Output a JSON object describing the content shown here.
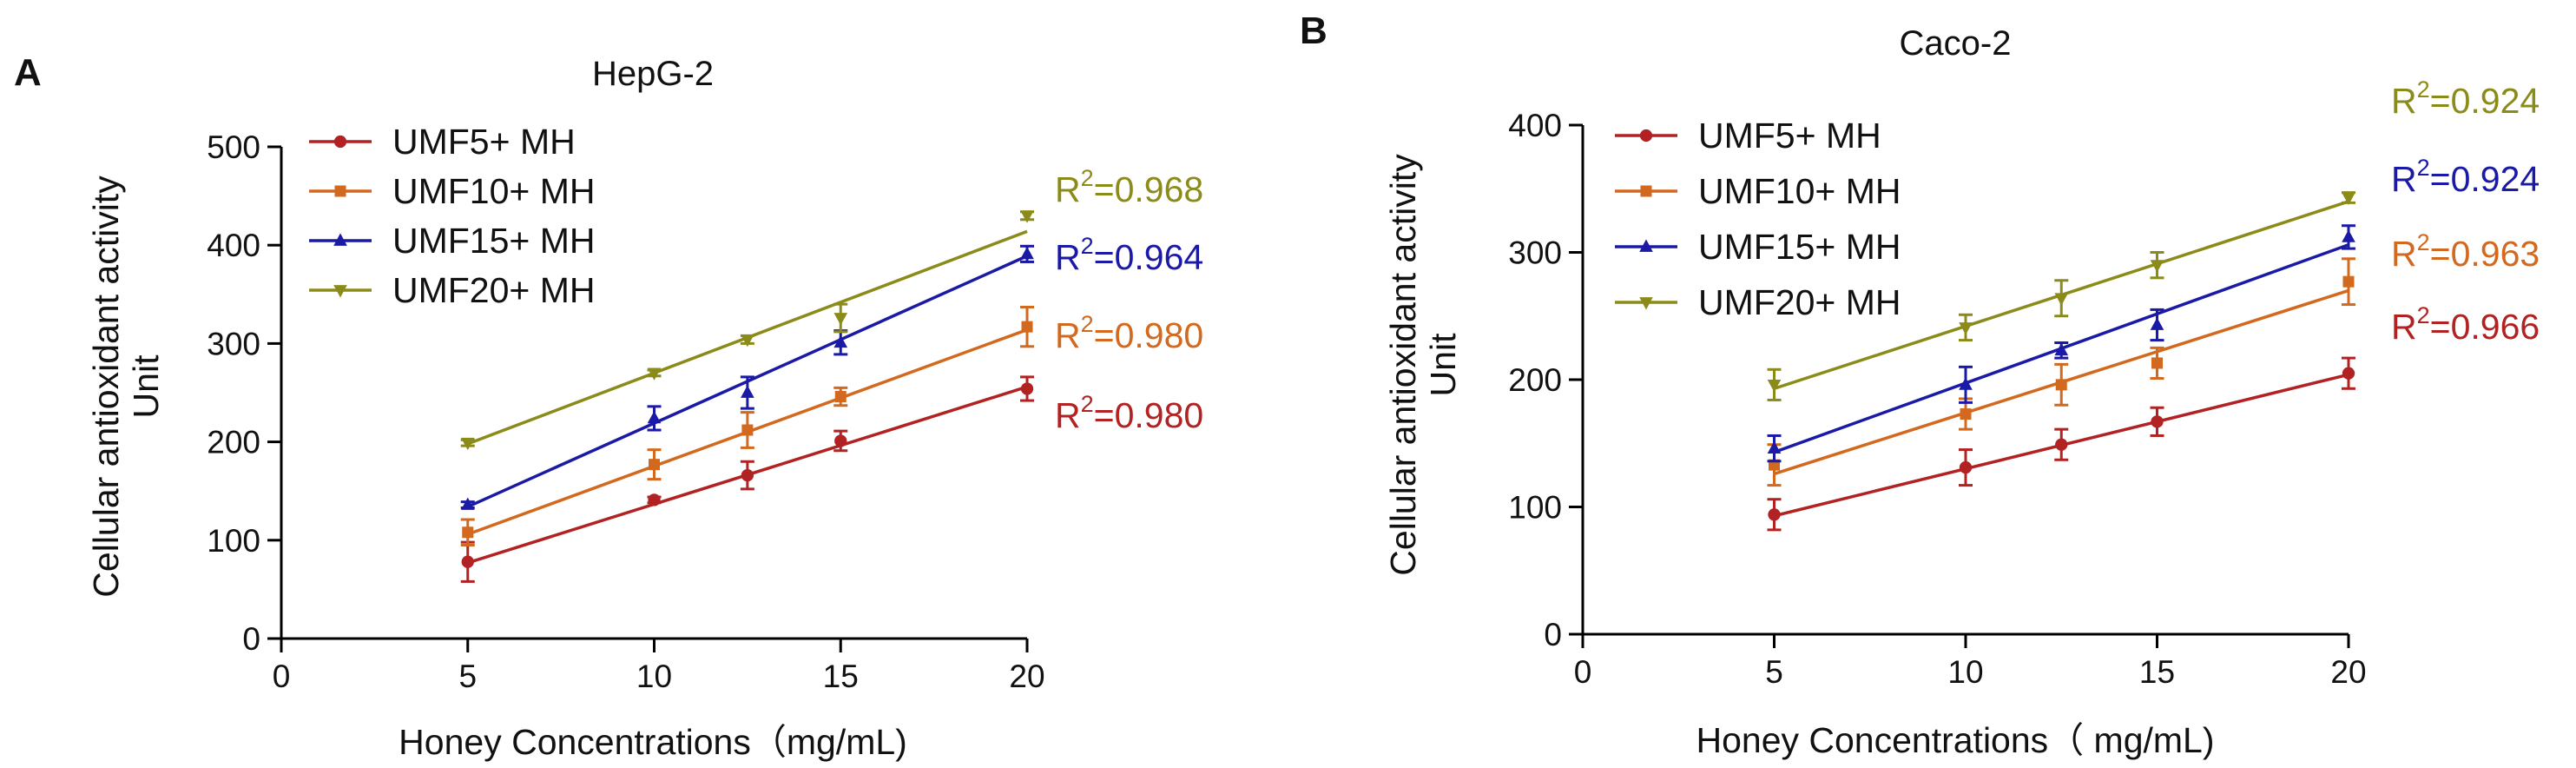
{
  "chart_data": [
    {
      "panel_label": "A",
      "type": "line",
      "title": "HepG-2",
      "xlabel": "Honey Concentrations（mg/mL)",
      "ylabel": [
        "Cellular antioxidant activity",
        "Unit"
      ],
      "xlim": [
        0,
        20
      ],
      "ylim": [
        0,
        500
      ],
      "xticks": [
        0,
        5,
        10,
        15,
        20
      ],
      "yticks": [
        0,
        100,
        200,
        300,
        400,
        500
      ],
      "x": [
        5,
        10,
        12.5,
        15,
        20
      ],
      "series": [
        {
          "name": "UMF5+ MH",
          "color": "#b22222",
          "marker": "circle",
          "values": [
            78,
            141,
            166,
            201,
            254
          ],
          "errors": [
            20,
            3,
            14,
            10,
            12
          ],
          "fit": [
            77,
            136,
            166,
            196,
            256
          ],
          "r2": "=0.980"
        },
        {
          "name": "UMF10+ MH",
          "color": "#d2691e",
          "marker": "square",
          "values": [
            108,
            177,
            212,
            246,
            317
          ],
          "errors": [
            13,
            15,
            18,
            9,
            20
          ],
          "fit": [
            106,
            175,
            210,
            245,
            314
          ],
          "r2": "=0.980"
        },
        {
          "name": "UMF15+ MH",
          "color": "#1a1aa6",
          "marker": "triangle-up",
          "values": [
            136,
            224,
            250,
            301,
            391
          ],
          "errors": [
            3,
            12,
            16,
            12,
            8
          ],
          "fit": [
            134,
            219,
            261,
            304,
            389
          ],
          "r2": "=0.964"
        },
        {
          "name": "UMF20+ MH",
          "color": "#8b8b1a",
          "marker": "triangle-down",
          "values": [
            199,
            270,
            304,
            326,
            430
          ],
          "errors": [
            3,
            3,
            4,
            14,
            4
          ],
          "fit": [
            198,
            270,
            306,
            342,
            414
          ],
          "r2": "=0.968"
        }
      ],
      "r2_prefix": "R",
      "r2_sup": "2"
    },
    {
      "panel_label": "B",
      "type": "line",
      "title": "Caco-2",
      "xlabel": "Honey Concentrations（ mg/mL)",
      "ylabel": [
        "Cellular antioxidant activity",
        "Unit"
      ],
      "xlim": [
        0,
        20
      ],
      "ylim": [
        0,
        400
      ],
      "xticks": [
        0,
        5,
        10,
        15,
        20
      ],
      "yticks": [
        0,
        100,
        200,
        300,
        400
      ],
      "x": [
        5,
        10,
        12.5,
        15,
        20
      ],
      "series": [
        {
          "name": "UMF5+ MH",
          "color": "#b22222",
          "marker": "circle",
          "values": [
            94,
            131,
            149,
            167,
            205
          ],
          "errors": [
            12,
            14,
            12,
            11,
            12
          ],
          "fit": [
            93,
            130,
            148,
            167,
            204
          ],
          "r2": "=0.966"
        },
        {
          "name": "UMF10+ MH",
          "color": "#d2691e",
          "marker": "square",
          "values": [
            133,
            173,
            196,
            213,
            277
          ],
          "errors": [
            16,
            12,
            16,
            12,
            18
          ],
          "fit": [
            126,
            174,
            198,
            222,
            270
          ],
          "r2": "=0.963"
        },
        {
          "name": "UMF15+ MH",
          "color": "#1a1aa6",
          "marker": "triangle-up",
          "values": [
            146,
            196,
            223,
            243,
            312
          ],
          "errors": [
            10,
            14,
            6,
            12,
            9
          ],
          "fit": [
            143,
            197,
            224,
            252,
            306
          ],
          "r2": "=0.924"
        },
        {
          "name": "UMF20+ MH",
          "color": "#8b8b1a",
          "marker": "triangle-down",
          "values": [
            196,
            241,
            264,
            290,
            343
          ],
          "errors": [
            12,
            10,
            14,
            10,
            4
          ],
          "fit": [
            193,
            242,
            266,
            291,
            340
          ],
          "r2": "=0.924"
        }
      ],
      "r2_prefix": "R",
      "r2_sup": "2"
    }
  ]
}
